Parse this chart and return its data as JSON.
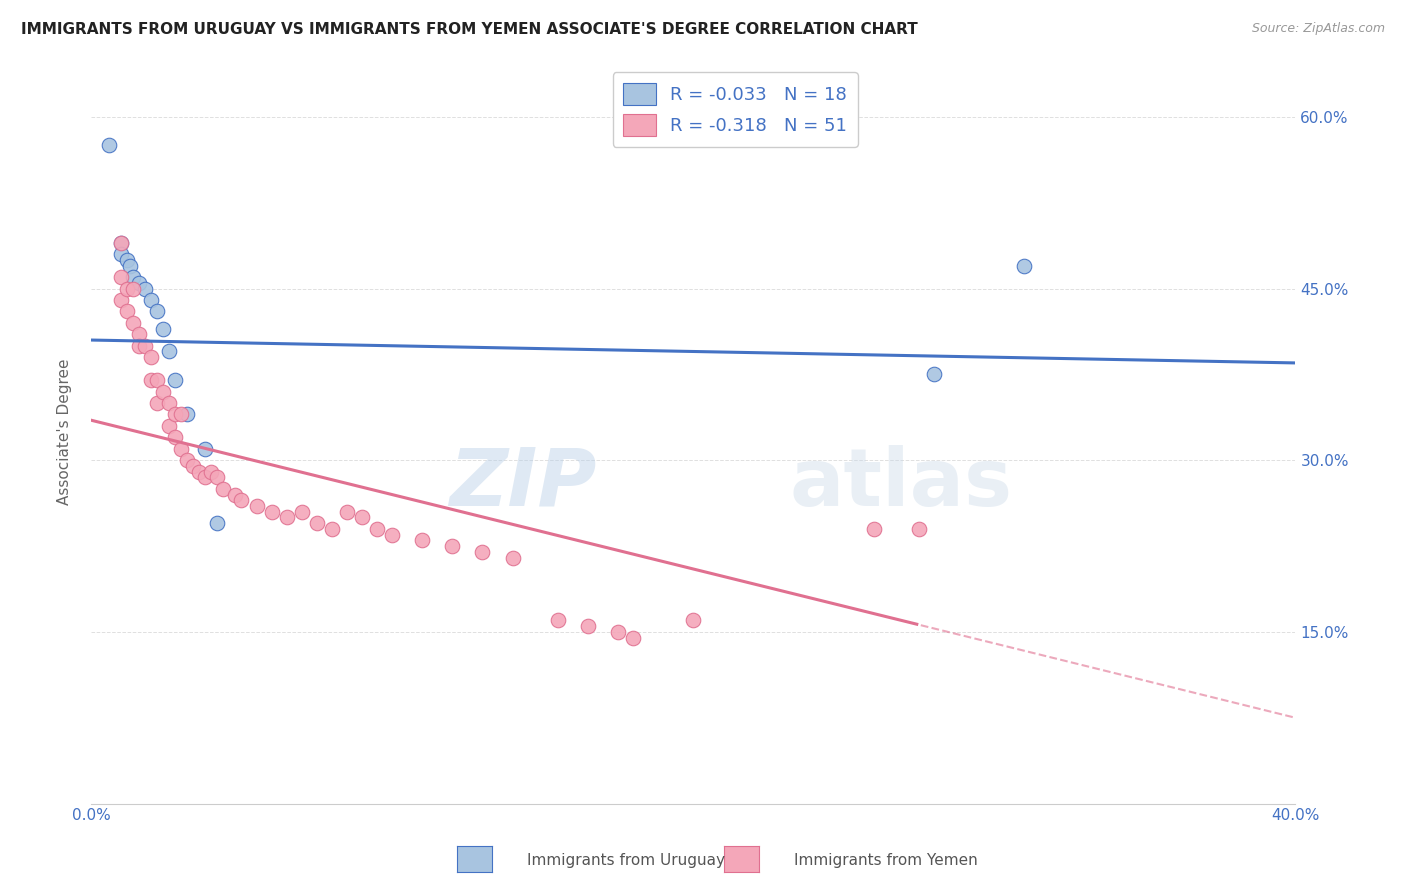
{
  "title": "IMMIGRANTS FROM URUGUAY VS IMMIGRANTS FROM YEMEN ASSOCIATE'S DEGREE CORRELATION CHART",
  "source": "Source: ZipAtlas.com",
  "ylabel": "Associate's Degree",
  "x_min": 0.0,
  "x_max": 0.4,
  "y_min": 0.0,
  "y_max": 0.65,
  "x_ticks": [
    0.0,
    0.05,
    0.1,
    0.15,
    0.2,
    0.25,
    0.3,
    0.35,
    0.4
  ],
  "y_ticks": [
    0.0,
    0.15,
    0.3,
    0.45,
    0.6
  ],
  "y_tick_labels": [
    "",
    "15.0%",
    "30.0%",
    "45.0%",
    "60.0%"
  ],
  "legend_r_uruguay": "-0.033",
  "legend_n_uruguay": "18",
  "legend_r_yemen": "-0.318",
  "legend_n_yemen": "51",
  "color_uruguay": "#a8c4e0",
  "color_yemen": "#f4a7b9",
  "line_color_uruguay": "#4472c4",
  "line_color_yemen": "#e07090",
  "watermark_zip": "ZIP",
  "watermark_atlas": "atlas",
  "uruguay_points": [
    [
      0.006,
      0.575
    ],
    [
      0.01,
      0.49
    ],
    [
      0.01,
      0.48
    ],
    [
      0.012,
      0.475
    ],
    [
      0.013,
      0.47
    ],
    [
      0.014,
      0.46
    ],
    [
      0.016,
      0.455
    ],
    [
      0.018,
      0.45
    ],
    [
      0.02,
      0.44
    ],
    [
      0.022,
      0.43
    ],
    [
      0.024,
      0.415
    ],
    [
      0.026,
      0.395
    ],
    [
      0.028,
      0.37
    ],
    [
      0.032,
      0.34
    ],
    [
      0.038,
      0.31
    ],
    [
      0.042,
      0.245
    ],
    [
      0.28,
      0.375
    ],
    [
      0.31,
      0.47
    ]
  ],
  "yemen_points": [
    [
      0.01,
      0.49
    ],
    [
      0.01,
      0.46
    ],
    [
      0.01,
      0.44
    ],
    [
      0.012,
      0.45
    ],
    [
      0.012,
      0.43
    ],
    [
      0.014,
      0.45
    ],
    [
      0.014,
      0.42
    ],
    [
      0.016,
      0.41
    ],
    [
      0.016,
      0.4
    ],
    [
      0.018,
      0.4
    ],
    [
      0.02,
      0.39
    ],
    [
      0.02,
      0.37
    ],
    [
      0.022,
      0.37
    ],
    [
      0.022,
      0.35
    ],
    [
      0.024,
      0.36
    ],
    [
      0.026,
      0.35
    ],
    [
      0.026,
      0.33
    ],
    [
      0.028,
      0.34
    ],
    [
      0.028,
      0.32
    ],
    [
      0.03,
      0.34
    ],
    [
      0.03,
      0.31
    ],
    [
      0.032,
      0.3
    ],
    [
      0.034,
      0.295
    ],
    [
      0.036,
      0.29
    ],
    [
      0.038,
      0.285
    ],
    [
      0.04,
      0.29
    ],
    [
      0.042,
      0.285
    ],
    [
      0.044,
      0.275
    ],
    [
      0.048,
      0.27
    ],
    [
      0.05,
      0.265
    ],
    [
      0.055,
      0.26
    ],
    [
      0.06,
      0.255
    ],
    [
      0.065,
      0.25
    ],
    [
      0.07,
      0.255
    ],
    [
      0.075,
      0.245
    ],
    [
      0.08,
      0.24
    ],
    [
      0.085,
      0.255
    ],
    [
      0.09,
      0.25
    ],
    [
      0.095,
      0.24
    ],
    [
      0.1,
      0.235
    ],
    [
      0.11,
      0.23
    ],
    [
      0.12,
      0.225
    ],
    [
      0.13,
      0.22
    ],
    [
      0.14,
      0.215
    ],
    [
      0.155,
      0.16
    ],
    [
      0.165,
      0.155
    ],
    [
      0.175,
      0.15
    ],
    [
      0.18,
      0.145
    ],
    [
      0.2,
      0.16
    ],
    [
      0.26,
      0.24
    ],
    [
      0.275,
      0.24
    ]
  ],
  "bg_color": "#ffffff",
  "grid_color": "#e0e0e0"
}
